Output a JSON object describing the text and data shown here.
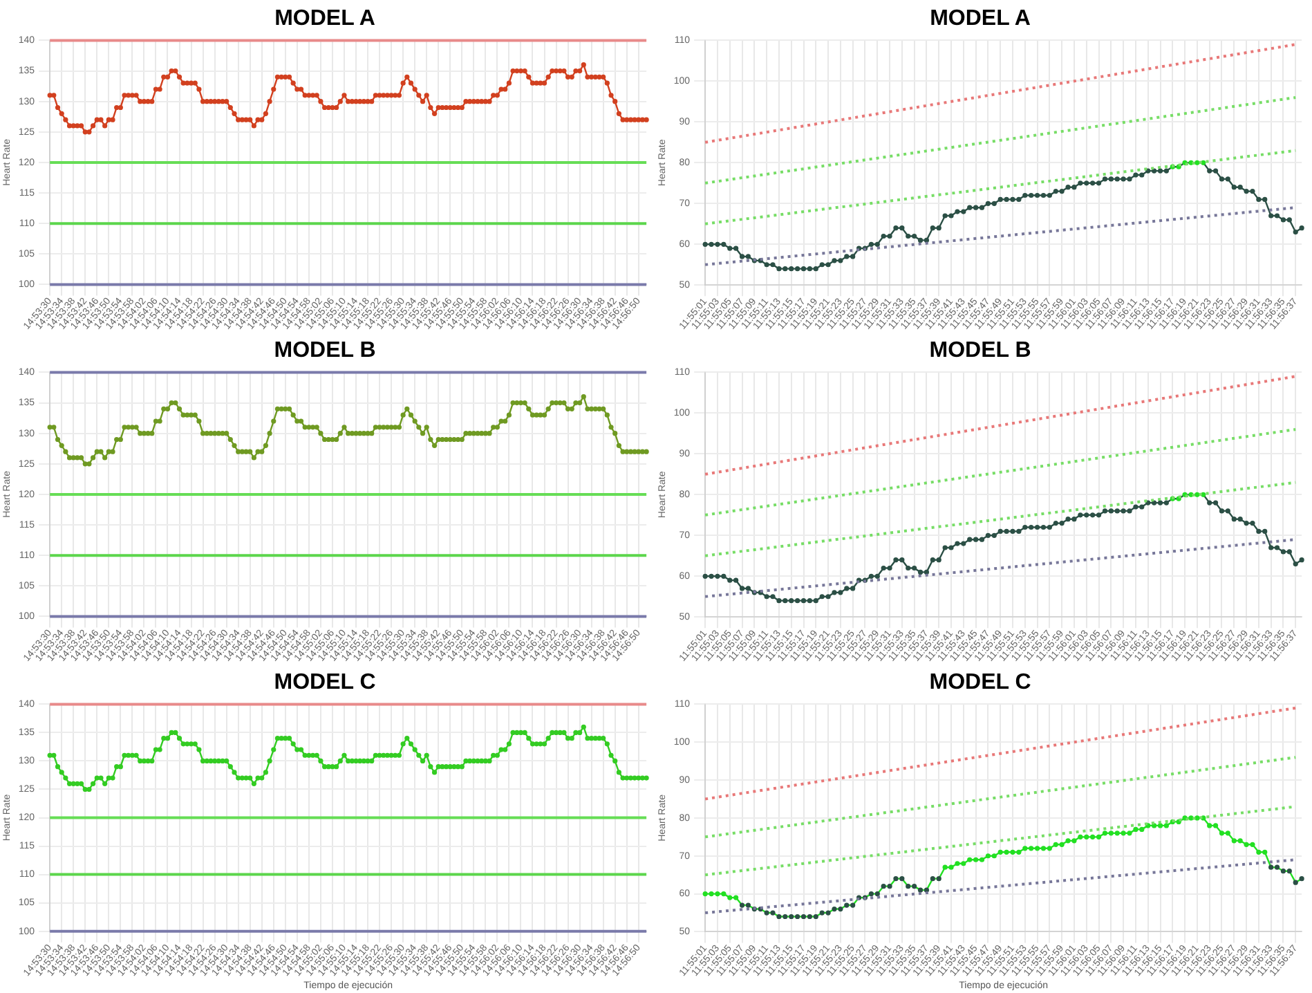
{
  "chart_data": [
    {
      "type": "line",
      "title": "MODEL A",
      "ylabel": "Heart Rate",
      "grid": true,
      "marker": "circle",
      "ylim": [
        100,
        140
      ],
      "yticks": [
        100,
        105,
        110,
        115,
        120,
        125,
        130,
        135,
        140
      ],
      "categories": [
        "14:53:30",
        null,
        null,
        "14:53:34",
        null,
        null,
        "14:53:38",
        null,
        null,
        "14:53:42",
        null,
        null,
        "14:53:46",
        null,
        null,
        "14:53:50",
        null,
        null,
        "14:53:54",
        null,
        null,
        "14:53:58",
        null,
        null,
        "14:54:02",
        null,
        null,
        "14:54:06",
        null,
        null,
        "14:54:10",
        null,
        null,
        "14:54:14",
        null,
        null,
        "14:54:18",
        null,
        null,
        "14:54:22",
        null,
        null,
        "14:54:26",
        null,
        null,
        "14:54:30",
        null,
        null,
        "14:54:34",
        null,
        null,
        "14:54:38",
        null,
        null,
        "14:54:42",
        null,
        null,
        "14:54:46",
        null,
        null,
        "14:54:50",
        null,
        null,
        "14:54:54",
        null,
        null,
        "14:54:58",
        null,
        null,
        "14:55:02",
        null,
        null,
        "14:55:06",
        null,
        null,
        "14:55:10",
        null,
        null,
        "14:55:14",
        null,
        null,
        "14:55:18",
        null,
        null,
        "14:55:22",
        null,
        null,
        "14:55:26",
        null,
        null,
        "14:55:30",
        null,
        null,
        "14:55:34",
        null,
        null,
        "14:55:38",
        null,
        null,
        "14:55:42",
        null,
        null,
        "14:55:46",
        null,
        null,
        "14:55:50",
        null,
        null,
        "14:55:54",
        null,
        null,
        "14:55:58",
        null,
        null,
        "14:56:02",
        null,
        null,
        "14:56:06",
        null,
        null,
        "14:56:10",
        null,
        null,
        "14:56:14",
        null,
        null,
        "14:56:18",
        null,
        null,
        "14:56:22",
        null,
        null,
        "14:56:26",
        null,
        null,
        "14:56:30",
        null,
        null,
        "14:56:34",
        null,
        null,
        "14:56:38",
        null,
        null,
        "14:56:42",
        null,
        null,
        "14:56:46",
        null,
        null,
        "14:56:50",
        null,
        null
      ],
      "color": "#d2401f",
      "values": [
        131,
        131,
        129,
        128,
        127,
        126,
        126,
        126,
        126,
        125,
        125,
        126,
        127,
        127,
        126,
        127,
        127,
        129,
        129,
        131,
        131,
        131,
        131,
        130,
        130,
        130,
        130,
        132,
        132,
        134,
        134,
        135,
        135,
        134,
        133,
        133,
        133,
        133,
        132,
        130,
        130,
        130,
        130,
        130,
        130,
        130,
        129,
        128,
        127,
        127,
        127,
        127,
        126,
        127,
        127,
        128,
        130,
        132,
        134,
        134,
        134,
        134,
        133,
        132,
        132,
        131,
        131,
        131,
        131,
        130,
        129,
        129,
        129,
        129,
        130,
        131,
        130,
        130,
        130,
        130,
        130,
        130,
        130,
        131,
        131,
        131,
        131,
        131,
        131,
        131,
        133,
        134,
        133,
        132,
        131,
        130,
        131,
        129,
        128,
        129,
        129,
        129,
        129,
        129,
        129,
        129,
        130,
        130,
        130,
        130,
        130,
        130,
        130,
        131,
        131,
        132,
        132,
        133,
        135,
        135,
        135,
        135,
        134,
        133,
        133,
        133,
        133,
        134,
        135,
        135,
        135,
        135,
        134,
        134,
        135,
        135,
        136,
        134,
        134,
        134,
        134,
        134,
        133,
        131,
        130,
        128,
        127,
        127,
        127,
        127,
        127,
        127,
        127
      ],
      "ref_lines": [
        {
          "axis": "y",
          "value": 140,
          "color": "#e88a8a"
        },
        {
          "axis": "y",
          "value": 120,
          "color": "#66dd55"
        },
        {
          "axis": "y",
          "value": 110,
          "color": "#5cd64c"
        },
        {
          "axis": "y",
          "value": 100,
          "color": "#7a7aaa"
        }
      ]
    },
    {
      "type": "line",
      "title": "MODEL A",
      "ylabel": "Heart Rate",
      "grid": true,
      "marker": "circle",
      "ylim": [
        50,
        110
      ],
      "yticks": [
        50,
        60,
        70,
        80,
        90,
        100,
        110
      ],
      "categories": [
        "11:55:01",
        null,
        "11:55:03",
        null,
        "11:55:05",
        null,
        "11:55:07",
        null,
        "11:55:09",
        null,
        "11:55:11",
        null,
        "11:55:13",
        null,
        "11:55:15",
        null,
        "11:55:17",
        null,
        "11:55:19",
        null,
        "11:55:21",
        null,
        "11:55:23",
        null,
        "11:55:25",
        null,
        "11:55:27",
        null,
        "11:55:29",
        null,
        "11:55:31",
        null,
        "11:55:33",
        null,
        "11:55:35",
        null,
        "11:55:37",
        null,
        "11:55:39",
        null,
        "11:55:41",
        null,
        "11:55:43",
        null,
        "11:55:45",
        null,
        "11:55:47",
        null,
        "11:55:49",
        null,
        "11:55:51",
        null,
        "11:55:53",
        null,
        "11:55:55",
        null,
        "11:55:57",
        null,
        "11:55:59",
        null,
        "11:56:01",
        null,
        "11:56:03",
        null,
        "11:56:05",
        null,
        "11:56:07",
        null,
        "11:56:09",
        null,
        "11:56:11",
        null,
        "11:56:13",
        null,
        "11:56:15",
        null,
        "11:56:17",
        null,
        "11:56:19",
        null,
        "11:56:21",
        null,
        "11:56:23",
        null,
        "11:56:25",
        null,
        "11:56:27",
        null,
        "11:56:29",
        null,
        "11:56:31",
        null,
        "11:56:33",
        null,
        "11:56:35",
        null,
        "11:56:37",
        null
      ],
      "series": [
        {
          "type": "line",
          "marker": "none",
          "line_style": "dotted",
          "color": "#e87878",
          "x": [
            "11:55:01",
            "11:56:37"
          ],
          "values": [
            85,
            109
          ]
        },
        {
          "type": "line",
          "marker": "none",
          "line_style": "dotted",
          "color": "#77dd66",
          "x": [
            "11:55:01",
            "11:56:37"
          ],
          "values": [
            75,
            96
          ]
        },
        {
          "type": "line",
          "marker": "none",
          "line_style": "dotted",
          "color": "#77dd66",
          "x": [
            "11:55:01",
            "11:56:37"
          ],
          "values": [
            65,
            83
          ]
        },
        {
          "type": "line",
          "marker": "none",
          "line_style": "dotted",
          "color": "#777799",
          "x": [
            "11:55:01",
            "11:56:37"
          ],
          "values": [
            55,
            69
          ]
        },
        {
          "color": "#2b4f45",
          "colors": [
            "#2b4f45",
            "#2b4f45",
            "#2b4f45",
            "#2b4f45",
            "#2b4f45",
            "#2b4f45",
            "#2b4f45",
            "#2b4f45",
            "#2b4f45",
            "#2b4f45",
            "#2b4f45",
            "#2b4f45",
            "#2b4f45",
            "#2b4f45",
            "#2b4f45",
            "#2b4f45",
            "#2b4f45",
            "#2b4f45",
            "#2b4f45",
            "#2b4f45",
            "#2b4f45",
            "#2b4f45",
            "#2b4f45",
            "#2b4f45",
            "#2b4f45",
            "#2b4f45",
            "#2b4f45",
            "#2b4f45",
            "#2b4f45",
            "#2b4f45",
            "#2b4f45",
            "#2b4f45",
            "#2b4f45",
            "#2b4f45",
            "#2b4f45",
            "#2b4f45",
            "#2b4f45",
            "#2b4f45",
            "#2b4f45",
            "#2b4f45",
            "#2b4f45",
            "#2b4f45",
            "#2b4f45",
            "#2b4f45",
            "#2b4f45",
            "#2b4f45",
            "#2b4f45",
            "#2b4f45",
            "#2b4f45",
            "#2b4f45",
            "#2b4f45",
            "#2b4f45",
            "#2b4f45",
            "#2b4f45",
            "#2b4f45",
            "#2b4f45",
            "#2b4f45",
            "#2b4f45",
            "#2b4f45",
            "#2b4f45",
            "#2b4f45",
            "#2b4f45",
            "#2b4f45",
            "#2b4f45",
            "#2b4f45",
            "#2b4f45",
            "#2b4f45",
            "#2b4f45",
            "#2b4f45",
            "#2b4f45",
            "#2b4f45",
            "#2b4f45",
            "#2b4f45",
            "#2b4f45",
            "#2b4f45",
            "#2b4f45",
            "#22e022",
            "#22e022",
            "#22e022",
            "#22e022",
            "#22e022",
            "#22e022",
            "#2b4f45",
            "#2b4f45",
            "#2b4f45",
            "#2b4f45",
            "#2b4f45",
            "#2b4f45",
            "#2b4f45",
            "#2b4f45",
            "#2b4f45",
            "#2b4f45",
            "#2b4f45",
            "#2b4f45",
            "#2b4f45",
            "#2b4f45",
            "#2b4f45",
            "#2b4f45"
          ],
          "values": [
            60,
            60,
            60,
            60,
            59,
            59,
            57,
            57,
            56,
            56,
            55,
            55,
            54,
            54,
            54,
            54,
            54,
            54,
            54,
            55,
            55,
            56,
            56,
            57,
            57,
            59,
            59,
            60,
            60,
            62,
            62,
            64,
            64,
            62,
            62,
            61,
            61,
            64,
            64,
            67,
            67,
            68,
            68,
            69,
            69,
            69,
            70,
            70,
            71,
            71,
            71,
            71,
            72,
            72,
            72,
            72,
            72,
            73,
            73,
            74,
            74,
            75,
            75,
            75,
            75,
            76,
            76,
            76,
            76,
            76,
            77,
            77,
            78,
            78,
            78,
            78,
            79,
            79,
            80,
            80,
            80,
            80,
            78,
            78,
            76,
            76,
            74,
            74,
            73,
            73,
            71,
            71,
            67,
            67,
            66,
            66,
            63,
            64
          ]
        }
      ]
    },
    {
      "type": "line",
      "title": "MODEL B",
      "ylabel": "Heart Rate",
      "grid": true,
      "marker": "circle",
      "ylim": [
        100,
        140
      ],
      "yticks": [
        100,
        105,
        110,
        115,
        120,
        125,
        130,
        135,
        140
      ],
      "categories": [
        "14:53:30",
        null,
        null,
        "14:53:34",
        null,
        null,
        "14:53:38",
        null,
        null,
        "14:53:42",
        null,
        null,
        "14:53:46",
        null,
        null,
        "14:53:50",
        null,
        null,
        "14:53:54",
        null,
        null,
        "14:53:58",
        null,
        null,
        "14:54:02",
        null,
        null,
        "14:54:06",
        null,
        null,
        "14:54:10",
        null,
        null,
        "14:54:14",
        null,
        null,
        "14:54:18",
        null,
        null,
        "14:54:22",
        null,
        null,
        "14:54:26",
        null,
        null,
        "14:54:30",
        null,
        null,
        "14:54:34",
        null,
        null,
        "14:54:38",
        null,
        null,
        "14:54:42",
        null,
        null,
        "14:54:46",
        null,
        null,
        "14:54:50",
        null,
        null,
        "14:54:54",
        null,
        null,
        "14:54:58",
        null,
        null,
        "14:55:02",
        null,
        null,
        "14:55:06",
        null,
        null,
        "14:55:10",
        null,
        null,
        "14:55:14",
        null,
        null,
        "14:55:18",
        null,
        null,
        "14:55:22",
        null,
        null,
        "14:55:26",
        null,
        null,
        "14:55:30",
        null,
        null,
        "14:55:34",
        null,
        null,
        "14:55:38",
        null,
        null,
        "14:55:42",
        null,
        null,
        "14:55:46",
        null,
        null,
        "14:55:50",
        null,
        null,
        "14:55:54",
        null,
        null,
        "14:55:58",
        null,
        null,
        "14:56:02",
        null,
        null,
        "14:56:06",
        null,
        null,
        "14:56:10",
        null,
        null,
        "14:56:14",
        null,
        null,
        "14:56:18",
        null,
        null,
        "14:56:22",
        null,
        null,
        "14:56:26",
        null,
        null,
        "14:56:30",
        null,
        null,
        "14:56:34",
        null,
        null,
        "14:56:38",
        null,
        null,
        "14:56:42",
        null,
        null,
        "14:56:46",
        null,
        null,
        "14:56:50",
        null,
        null
      ],
      "color": "#6f9a22",
      "values": [
        131,
        131,
        129,
        128,
        127,
        126,
        126,
        126,
        126,
        125,
        125,
        126,
        127,
        127,
        126,
        127,
        127,
        129,
        129,
        131,
        131,
        131,
        131,
        130,
        130,
        130,
        130,
        132,
        132,
        134,
        134,
        135,
        135,
        134,
        133,
        133,
        133,
        133,
        132,
        130,
        130,
        130,
        130,
        130,
        130,
        130,
        129,
        128,
        127,
        127,
        127,
        127,
        126,
        127,
        127,
        128,
        130,
        132,
        134,
        134,
        134,
        134,
        133,
        132,
        132,
        131,
        131,
        131,
        131,
        130,
        129,
        129,
        129,
        129,
        130,
        131,
        130,
        130,
        130,
        130,
        130,
        130,
        130,
        131,
        131,
        131,
        131,
        131,
        131,
        131,
        133,
        134,
        133,
        132,
        131,
        130,
        131,
        129,
        128,
        129,
        129,
        129,
        129,
        129,
        129,
        129,
        130,
        130,
        130,
        130,
        130,
        130,
        130,
        131,
        131,
        132,
        132,
        133,
        135,
        135,
        135,
        135,
        134,
        133,
        133,
        133,
        133,
        134,
        135,
        135,
        135,
        135,
        134,
        134,
        135,
        135,
        136,
        134,
        134,
        134,
        134,
        134,
        133,
        131,
        130,
        128,
        127,
        127,
        127,
        127,
        127,
        127,
        127
      ],
      "ref_lines": [
        {
          "axis": "y",
          "value": 140,
          "color": "#7a7aab"
        },
        {
          "axis": "y",
          "value": 120,
          "color": "#66dd55"
        },
        {
          "axis": "y",
          "value": 110,
          "color": "#5cd64c"
        },
        {
          "axis": "y",
          "value": 100,
          "color": "#7a7aaa"
        }
      ]
    },
    {
      "type": "line",
      "title": "MODEL B",
      "ylabel": "Heart Rate",
      "grid": true,
      "marker": "circle",
      "ylim": [
        50,
        110
      ],
      "yticks": [
        50,
        60,
        70,
        80,
        90,
        100,
        110
      ],
      "categories": [
        "11:55:01",
        null,
        "11:55:03",
        null,
        "11:55:05",
        null,
        "11:55:07",
        null,
        "11:55:09",
        null,
        "11:55:11",
        null,
        "11:55:13",
        null,
        "11:55:15",
        null,
        "11:55:17",
        null,
        "11:55:19",
        null,
        "11:55:21",
        null,
        "11:55:23",
        null,
        "11:55:25",
        null,
        "11:55:27",
        null,
        "11:55:29",
        null,
        "11:55:31",
        null,
        "11:55:33",
        null,
        "11:55:35",
        null,
        "11:55:37",
        null,
        "11:55:39",
        null,
        "11:55:41",
        null,
        "11:55:43",
        null,
        "11:55:45",
        null,
        "11:55:47",
        null,
        "11:55:49",
        null,
        "11:55:51",
        null,
        "11:55:53",
        null,
        "11:55:55",
        null,
        "11:55:57",
        null,
        "11:55:59",
        null,
        "11:56:01",
        null,
        "11:56:03",
        null,
        "11:56:05",
        null,
        "11:56:07",
        null,
        "11:56:09",
        null,
        "11:56:11",
        null,
        "11:56:13",
        null,
        "11:56:15",
        null,
        "11:56:17",
        null,
        "11:56:19",
        null,
        "11:56:21",
        null,
        "11:56:23",
        null,
        "11:56:25",
        null,
        "11:56:27",
        null,
        "11:56:29",
        null,
        "11:56:31",
        null,
        "11:56:33",
        null,
        "11:56:35",
        null,
        "11:56:37",
        null
      ],
      "series": [
        {
          "type": "line",
          "marker": "none",
          "line_style": "dotted",
          "color": "#e87878",
          "x": [
            "11:55:01",
            "11:56:37"
          ],
          "values": [
            85,
            109
          ]
        },
        {
          "type": "line",
          "marker": "none",
          "line_style": "dotted",
          "color": "#77dd66",
          "x": [
            "11:55:01",
            "11:56:37"
          ],
          "values": [
            75,
            96
          ]
        },
        {
          "type": "line",
          "marker": "none",
          "line_style": "dotted",
          "color": "#77dd66",
          "x": [
            "11:55:01",
            "11:56:37"
          ],
          "values": [
            65,
            83
          ]
        },
        {
          "type": "line",
          "marker": "none",
          "line_style": "dotted",
          "color": "#777799",
          "x": [
            "11:55:01",
            "11:56:37"
          ],
          "values": [
            55,
            69
          ]
        },
        {
          "color": "#2b4f45",
          "colors": [
            "#2b4f45",
            "#2b4f45",
            "#2b4f45",
            "#2b4f45",
            "#2b4f45",
            "#2b4f45",
            "#2b4f45",
            "#2b4f45",
            "#2b4f45",
            "#2b4f45",
            "#2b4f45",
            "#2b4f45",
            "#2b4f45",
            "#2b4f45",
            "#2b4f45",
            "#2b4f45",
            "#2b4f45",
            "#2b4f45",
            "#2b4f45",
            "#2b4f45",
            "#2b4f45",
            "#2b4f45",
            "#2b4f45",
            "#2b4f45",
            "#2b4f45",
            "#2b4f45",
            "#2b4f45",
            "#2b4f45",
            "#2b4f45",
            "#2b4f45",
            "#2b4f45",
            "#2b4f45",
            "#2b4f45",
            "#2b4f45",
            "#2b4f45",
            "#2b4f45",
            "#2b4f45",
            "#2b4f45",
            "#2b4f45",
            "#2b4f45",
            "#2b4f45",
            "#2b4f45",
            "#2b4f45",
            "#2b4f45",
            "#2b4f45",
            "#2b4f45",
            "#2b4f45",
            "#2b4f45",
            "#2b4f45",
            "#2b4f45",
            "#2b4f45",
            "#2b4f45",
            "#2b4f45",
            "#2b4f45",
            "#2b4f45",
            "#2b4f45",
            "#2b4f45",
            "#2b4f45",
            "#2b4f45",
            "#2b4f45",
            "#2b4f45",
            "#2b4f45",
            "#2b4f45",
            "#2b4f45",
            "#2b4f45",
            "#2b4f45",
            "#2b4f45",
            "#2b4f45",
            "#2b4f45",
            "#2b4f45",
            "#2b4f45",
            "#2b4f45",
            "#2b4f45",
            "#2b4f45",
            "#2b4f45",
            "#2b4f45",
            "#22e022",
            "#22e022",
            "#22e022",
            "#22e022",
            "#22e022",
            "#22e022",
            "#2b4f45",
            "#2b4f45",
            "#2b4f45",
            "#2b4f45",
            "#2b4f45",
            "#2b4f45",
            "#2b4f45",
            "#2b4f45",
            "#2b4f45",
            "#2b4f45",
            "#2b4f45",
            "#2b4f45",
            "#2b4f45",
            "#2b4f45",
            "#2b4f45",
            "#2b4f45"
          ],
          "values": [
            60,
            60,
            60,
            60,
            59,
            59,
            57,
            57,
            56,
            56,
            55,
            55,
            54,
            54,
            54,
            54,
            54,
            54,
            54,
            55,
            55,
            56,
            56,
            57,
            57,
            59,
            59,
            60,
            60,
            62,
            62,
            64,
            64,
            62,
            62,
            61,
            61,
            64,
            64,
            67,
            67,
            68,
            68,
            69,
            69,
            69,
            70,
            70,
            71,
            71,
            71,
            71,
            72,
            72,
            72,
            72,
            72,
            73,
            73,
            74,
            74,
            75,
            75,
            75,
            75,
            76,
            76,
            76,
            76,
            76,
            77,
            77,
            78,
            78,
            78,
            78,
            79,
            79,
            80,
            80,
            80,
            80,
            78,
            78,
            76,
            76,
            74,
            74,
            73,
            73,
            71,
            71,
            67,
            67,
            66,
            66,
            63,
            64
          ]
        }
      ]
    },
    {
      "type": "line",
      "title": "MODEL C",
      "ylabel": "Heart Rate",
      "xlabel": "Tiempo de ejecución",
      "grid": true,
      "marker": "circle",
      "ylim": [
        100,
        140
      ],
      "yticks": [
        100,
        105,
        110,
        115,
        120,
        125,
        130,
        135,
        140
      ],
      "categories": [
        "14:53:30",
        null,
        null,
        "14:53:34",
        null,
        null,
        "14:53:38",
        null,
        null,
        "14:53:42",
        null,
        null,
        "14:53:46",
        null,
        null,
        "14:53:50",
        null,
        null,
        "14:53:54",
        null,
        null,
        "14:53:58",
        null,
        null,
        "14:54:02",
        null,
        null,
        "14:54:06",
        null,
        null,
        "14:54:10",
        null,
        null,
        "14:54:14",
        null,
        null,
        "14:54:18",
        null,
        null,
        "14:54:22",
        null,
        null,
        "14:54:26",
        null,
        null,
        "14:54:30",
        null,
        null,
        "14:54:34",
        null,
        null,
        "14:54:38",
        null,
        null,
        "14:54:42",
        null,
        null,
        "14:54:46",
        null,
        null,
        "14:54:50",
        null,
        null,
        "14:54:54",
        null,
        null,
        "14:54:58",
        null,
        null,
        "14:55:02",
        null,
        null,
        "14:55:06",
        null,
        null,
        "14:55:10",
        null,
        null,
        "14:55:14",
        null,
        null,
        "14:55:18",
        null,
        null,
        "14:55:22",
        null,
        null,
        "14:55:26",
        null,
        null,
        "14:55:30",
        null,
        null,
        "14:55:34",
        null,
        null,
        "14:55:38",
        null,
        null,
        "14:55:42",
        null,
        null,
        "14:55:46",
        null,
        null,
        "14:55:50",
        null,
        null,
        "14:55:54",
        null,
        null,
        "14:55:58",
        null,
        null,
        "14:56:02",
        null,
        null,
        "14:56:06",
        null,
        null,
        "14:56:10",
        null,
        null,
        "14:56:14",
        null,
        null,
        "14:56:18",
        null,
        null,
        "14:56:22",
        null,
        null,
        "14:56:26",
        null,
        null,
        "14:56:30",
        null,
        null,
        "14:56:34",
        null,
        null,
        "14:56:38",
        null,
        null,
        "14:56:42",
        null,
        null,
        "14:56:46",
        null,
        null,
        "14:56:50",
        null,
        null
      ],
      "color": "#33cc22",
      "values": [
        131,
        131,
        129,
        128,
        127,
        126,
        126,
        126,
        126,
        125,
        125,
        126,
        127,
        127,
        126,
        127,
        127,
        129,
        129,
        131,
        131,
        131,
        131,
        130,
        130,
        130,
        130,
        132,
        132,
        134,
        134,
        135,
        135,
        134,
        133,
        133,
        133,
        133,
        132,
        130,
        130,
        130,
        130,
        130,
        130,
        130,
        129,
        128,
        127,
        127,
        127,
        127,
        126,
        127,
        127,
        128,
        130,
        132,
        134,
        134,
        134,
        134,
        133,
        132,
        132,
        131,
        131,
        131,
        131,
        130,
        129,
        129,
        129,
        129,
        130,
        131,
        130,
        130,
        130,
        130,
        130,
        130,
        130,
        131,
        131,
        131,
        131,
        131,
        131,
        131,
        133,
        134,
        133,
        132,
        131,
        130,
        131,
        129,
        128,
        129,
        129,
        129,
        129,
        129,
        129,
        129,
        130,
        130,
        130,
        130,
        130,
        130,
        130,
        131,
        131,
        132,
        132,
        133,
        135,
        135,
        135,
        135,
        134,
        133,
        133,
        133,
        133,
        134,
        135,
        135,
        135,
        135,
        134,
        134,
        135,
        135,
        136,
        134,
        134,
        134,
        134,
        134,
        133,
        131,
        130,
        128,
        127,
        127,
        127,
        127,
        127,
        127,
        127
      ],
      "ref_lines": [
        {
          "axis": "y",
          "value": 140,
          "color": "#e88a8a"
        },
        {
          "axis": "y",
          "value": 120,
          "color": "#66dd55"
        },
        {
          "axis": "y",
          "value": 110,
          "color": "#5cd64c"
        },
        {
          "axis": "y",
          "value": 100,
          "color": "#7a7aaa"
        }
      ]
    },
    {
      "type": "line",
      "title": "MODEL C",
      "ylabel": "Heart Rate",
      "xlabel": "Tiempo de ejecución",
      "grid": true,
      "marker": "circle",
      "ylim": [
        50,
        110
      ],
      "yticks": [
        50,
        60,
        70,
        80,
        90,
        100,
        110
      ],
      "categories": [
        "11:55:01",
        null,
        "11:55:03",
        null,
        "11:55:05",
        null,
        "11:55:07",
        null,
        "11:55:09",
        null,
        "11:55:11",
        null,
        "11:55:13",
        null,
        "11:55:15",
        null,
        "11:55:17",
        null,
        "11:55:19",
        null,
        "11:55:21",
        null,
        "11:55:23",
        null,
        "11:55:25",
        null,
        "11:55:27",
        null,
        "11:55:29",
        null,
        "11:55:31",
        null,
        "11:55:33",
        null,
        "11:55:35",
        null,
        "11:55:37",
        null,
        "11:55:39",
        null,
        "11:55:41",
        null,
        "11:55:43",
        null,
        "11:55:45",
        null,
        "11:55:47",
        null,
        "11:55:49",
        null,
        "11:55:51",
        null,
        "11:55:53",
        null,
        "11:55:55",
        null,
        "11:55:57",
        null,
        "11:55:59",
        null,
        "11:56:01",
        null,
        "11:56:03",
        null,
        "11:56:05",
        null,
        "11:56:07",
        null,
        "11:56:09",
        null,
        "11:56:11",
        null,
        "11:56:13",
        null,
        "11:56:15",
        null,
        "11:56:17",
        null,
        "11:56:19",
        null,
        "11:56:21",
        null,
        "11:56:23",
        null,
        "11:56:25",
        null,
        "11:56:27",
        null,
        "11:56:29",
        null,
        "11:56:31",
        null,
        "11:56:33",
        null,
        "11:56:35",
        null,
        "11:56:37",
        null
      ],
      "series": [
        {
          "type": "line",
          "marker": "none",
          "line_style": "dotted",
          "color": "#e87878",
          "x": [
            "11:55:01",
            "11:56:37"
          ],
          "values": [
            85,
            109
          ]
        },
        {
          "type": "line",
          "marker": "none",
          "line_style": "dotted",
          "color": "#77dd66",
          "x": [
            "11:55:01",
            "11:56:37"
          ],
          "values": [
            75,
            96
          ]
        },
        {
          "type": "line",
          "marker": "none",
          "line_style": "dotted",
          "color": "#77dd66",
          "x": [
            "11:55:01",
            "11:56:37"
          ],
          "values": [
            65,
            83
          ]
        },
        {
          "type": "line",
          "marker": "none",
          "line_style": "dotted",
          "color": "#777799",
          "x": [
            "11:55:01",
            "11:56:37"
          ],
          "values": [
            55,
            69
          ]
        },
        {
          "color": "#22e022",
          "colors": [
            "#22e022",
            "#22e022",
            "#22e022",
            "#22e022",
            "#22e022",
            "#22e022",
            "#2b4f45",
            "#2b4f45",
            "#2b4f45",
            "#2b4f45",
            "#2b4f45",
            "#2b4f45",
            "#2b4f45",
            "#2b4f45",
            "#2b4f45",
            "#2b4f45",
            "#2b4f45",
            "#2b4f45",
            "#2b4f45",
            "#2b4f45",
            "#2b4f45",
            "#2b4f45",
            "#2b4f45",
            "#2b4f45",
            "#2b4f45",
            "#2b4f45",
            "#2b4f45",
            "#2b4f45",
            "#2b4f45",
            "#2b4f45",
            "#2b4f45",
            "#2b4f45",
            "#2b4f45",
            "#2b4f45",
            "#2b4f45",
            "#2b4f45",
            "#2b4f45",
            "#2b4f45",
            "#2b4f45",
            "#22e022",
            "#22e022",
            "#22e022",
            "#22e022",
            "#22e022",
            "#22e022",
            "#22e022",
            "#22e022",
            "#22e022",
            "#22e022",
            "#22e022",
            "#22e022",
            "#22e022",
            "#22e022",
            "#22e022",
            "#22e022",
            "#22e022",
            "#22e022",
            "#22e022",
            "#22e022",
            "#22e022",
            "#22e022",
            "#22e022",
            "#22e022",
            "#22e022",
            "#22e022",
            "#22e022",
            "#22e022",
            "#22e022",
            "#22e022",
            "#22e022",
            "#22e022",
            "#22e022",
            "#22e022",
            "#22e022",
            "#22e022",
            "#22e022",
            "#22e022",
            "#22e022",
            "#22e022",
            "#22e022",
            "#22e022",
            "#22e022",
            "#22e022",
            "#22e022",
            "#22e022",
            "#22e022",
            "#22e022",
            "#22e022",
            "#22e022",
            "#22e022",
            "#22e022",
            "#22e022",
            "#2b4f45",
            "#2b4f45",
            "#2b4f45",
            "#2b4f45",
            "#2b4f45",
            "#2b4f45"
          ],
          "values": [
            60,
            60,
            60,
            60,
            59,
            59,
            57,
            57,
            56,
            56,
            55,
            55,
            54,
            54,
            54,
            54,
            54,
            54,
            54,
            55,
            55,
            56,
            56,
            57,
            57,
            59,
            59,
            60,
            60,
            62,
            62,
            64,
            64,
            62,
            62,
            61,
            61,
            64,
            64,
            67,
            67,
            68,
            68,
            69,
            69,
            69,
            70,
            70,
            71,
            71,
            71,
            71,
            72,
            72,
            72,
            72,
            72,
            73,
            73,
            74,
            74,
            75,
            75,
            75,
            75,
            76,
            76,
            76,
            76,
            76,
            77,
            77,
            78,
            78,
            78,
            78,
            79,
            79,
            80,
            80,
            80,
            80,
            78,
            78,
            76,
            76,
            74,
            74,
            73,
            73,
            71,
            71,
            67,
            67,
            66,
            66,
            63,
            64
          ]
        }
      ]
    }
  ]
}
